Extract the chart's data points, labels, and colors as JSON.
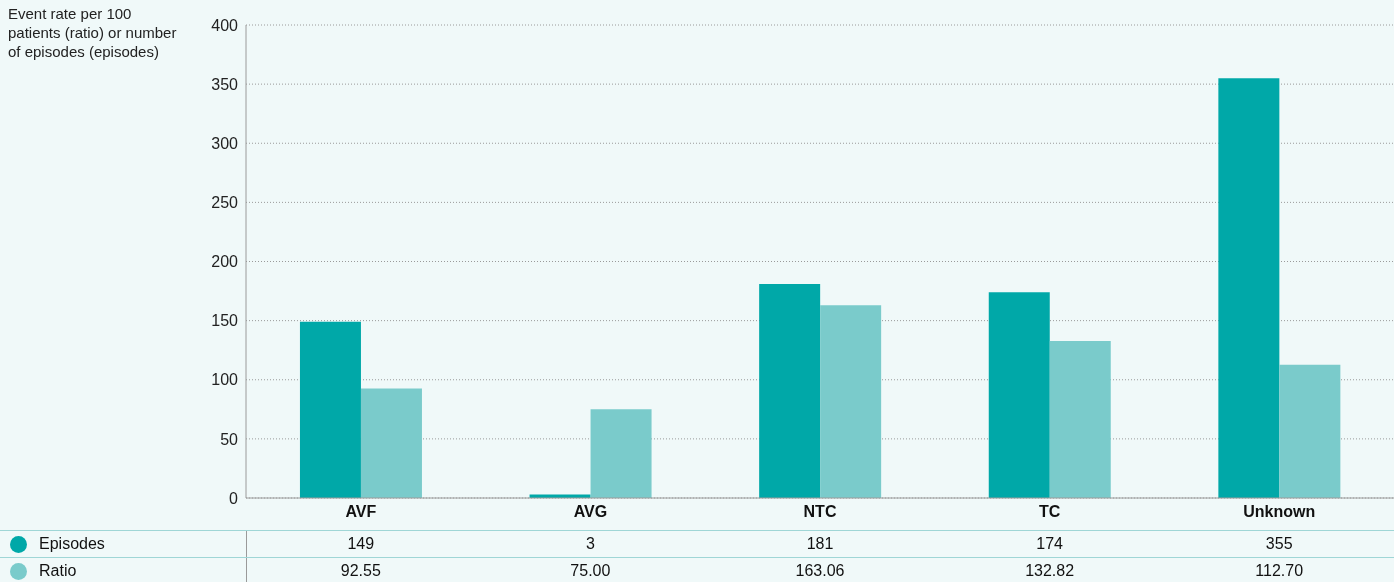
{
  "chart_data": {
    "type": "bar",
    "ylabel": "Event rate per 100 patients (ratio) or number of episodes (episodes)",
    "categories": [
      "AVF",
      "AVG",
      "NTC",
      "TC",
      "Unknown"
    ],
    "series": [
      {
        "name": "Episodes",
        "color": "#00a8a8",
        "values": [
          149,
          3,
          181,
          174,
          355
        ],
        "value_labels": [
          "149",
          "3",
          "181",
          "174",
          "355"
        ]
      },
      {
        "name": "Ratio",
        "color": "#7acbcb",
        "values": [
          92.55,
          75.0,
          163.06,
          132.82,
          112.7
        ],
        "value_labels": [
          "92.55",
          "75.00",
          "163.06",
          "132.82",
          "112.70"
        ]
      }
    ],
    "ylim": [
      0,
      400
    ],
    "yticks": [
      0,
      50,
      100,
      150,
      200,
      250,
      300,
      350,
      400
    ],
    "grid": "y",
    "legend": "bottom"
  }
}
